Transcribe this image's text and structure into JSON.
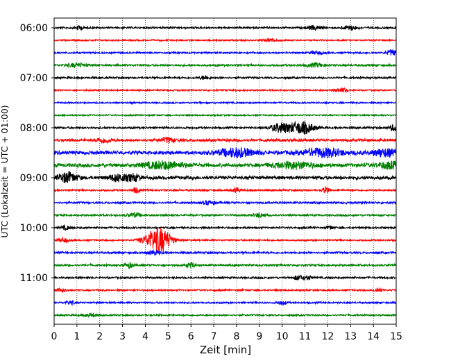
{
  "chart_data": {
    "type": "line",
    "subtype": "helicorder",
    "title": "",
    "xlabel": "Zeit  [min]",
    "ylabel": "UTC (Lokalzeit = UTC + 01:00)",
    "xlim": [
      0,
      15
    ],
    "x_ticks": [
      0,
      1,
      2,
      3,
      4,
      5,
      6,
      7,
      8,
      9,
      10,
      11,
      12,
      13,
      14,
      15
    ],
    "x_tick_labels": [
      "0",
      "1",
      "2",
      "3",
      "4",
      "5",
      "6",
      "7",
      "8",
      "9",
      "10",
      "11",
      "12",
      "13",
      "14",
      "15"
    ],
    "grid": "vertical dotted lines at each minute",
    "y_tick_labels": [
      "06:00",
      "07:00",
      "08:00",
      "09:00",
      "10:00",
      "11:00"
    ],
    "trace_interval_min": 15,
    "start_time": "06:00",
    "trace_colors": [
      "#000000",
      "#ff0000",
      "#0000ff",
      "#008000"
    ],
    "traces": [
      {
        "start": "06:00",
        "color": "#000000",
        "noise": 0.55,
        "events": [
          {
            "t": 1.1,
            "amp": 1.2,
            "dur": 0.2
          },
          {
            "t": 11.4,
            "amp": 1.3,
            "dur": 0.3
          },
          {
            "t": 13.0,
            "amp": 1.4,
            "dur": 0.3
          }
        ]
      },
      {
        "start": "06:15",
        "color": "#ff0000",
        "noise": 0.45,
        "events": [
          {
            "t": 9.5,
            "amp": 1.0,
            "dur": 0.3
          }
        ]
      },
      {
        "start": "06:30",
        "color": "#0000ff",
        "noise": 0.5,
        "events": [
          {
            "t": 14.8,
            "amp": 1.6,
            "dur": 0.25
          },
          {
            "t": 11.5,
            "amp": 1.0,
            "dur": 0.3
          }
        ]
      },
      {
        "start": "06:45",
        "color": "#008000",
        "noise": 0.6,
        "events": [
          {
            "t": 1.0,
            "amp": 1.2,
            "dur": 0.4
          },
          {
            "t": 11.5,
            "amp": 1.2,
            "dur": 0.4
          }
        ]
      },
      {
        "start": "07:00",
        "color": "#000000",
        "noise": 0.55,
        "events": [
          {
            "t": 6.6,
            "amp": 1.3,
            "dur": 0.2
          }
        ]
      },
      {
        "start": "07:15",
        "color": "#ff0000",
        "noise": 0.45,
        "events": [
          {
            "t": 12.6,
            "amp": 1.3,
            "dur": 0.3
          }
        ]
      },
      {
        "start": "07:30",
        "color": "#0000ff",
        "noise": 0.45,
        "events": []
      },
      {
        "start": "07:45",
        "color": "#008000",
        "noise": 0.4,
        "events": []
      },
      {
        "start": "08:00",
        "color": "#000000",
        "noise": 0.6,
        "events": [
          {
            "t": 10.0,
            "amp": 3.0,
            "dur": 0.5
          },
          {
            "t": 10.9,
            "amp": 3.8,
            "dur": 0.5
          },
          {
            "t": 14.9,
            "amp": 2.0,
            "dur": 0.2
          }
        ]
      },
      {
        "start": "08:15",
        "color": "#ff0000",
        "noise": 0.85,
        "events": [
          {
            "t": 2.2,
            "amp": 1.5,
            "dur": 0.3
          },
          {
            "t": 5.0,
            "amp": 1.4,
            "dur": 0.3
          }
        ]
      },
      {
        "start": "08:30",
        "color": "#0000ff",
        "noise": 1.1,
        "events": [
          {
            "t": 8.0,
            "amp": 2.6,
            "dur": 0.8
          },
          {
            "t": 11.8,
            "amp": 2.6,
            "dur": 0.9
          },
          {
            "t": 14.5,
            "amp": 2.2,
            "dur": 0.6
          }
        ]
      },
      {
        "start": "08:45",
        "color": "#008000",
        "noise": 1.1,
        "events": [
          {
            "t": 4.8,
            "amp": 2.2,
            "dur": 0.9
          },
          {
            "t": 10.5,
            "amp": 2.0,
            "dur": 0.9
          },
          {
            "t": 14.7,
            "amp": 2.0,
            "dur": 0.5
          }
        ]
      },
      {
        "start": "09:00",
        "color": "#000000",
        "noise": 1.0,
        "events": [
          {
            "t": 0.6,
            "amp": 3.2,
            "dur": 0.4
          },
          {
            "t": 2.8,
            "amp": 2.2,
            "dur": 0.4
          },
          {
            "t": 3.5,
            "amp": 2.0,
            "dur": 0.3
          }
        ]
      },
      {
        "start": "09:15",
        "color": "#ff0000",
        "noise": 0.55,
        "events": [
          {
            "t": 3.6,
            "amp": 1.8,
            "dur": 0.15
          },
          {
            "t": 8.0,
            "amp": 1.6,
            "dur": 0.15
          },
          {
            "t": 11.9,
            "amp": 2.0,
            "dur": 0.15
          }
        ]
      },
      {
        "start": "09:30",
        "color": "#0000ff",
        "noise": 0.6,
        "events": [
          {
            "t": 6.8,
            "amp": 1.2,
            "dur": 0.3
          }
        ]
      },
      {
        "start": "09:45",
        "color": "#008000",
        "noise": 0.55,
        "events": [
          {
            "t": 3.5,
            "amp": 1.4,
            "dur": 0.3
          },
          {
            "t": 9.0,
            "amp": 1.2,
            "dur": 0.3
          }
        ]
      },
      {
        "start": "10:00",
        "color": "#000000",
        "noise": 0.55,
        "events": [
          {
            "t": 0.5,
            "amp": 1.2,
            "dur": 0.2
          },
          {
            "t": 12.1,
            "amp": 1.3,
            "dur": 0.15
          }
        ]
      },
      {
        "start": "10:15",
        "color": "#ff0000",
        "noise": 0.5,
        "events": [
          {
            "t": 0.4,
            "amp": 1.6,
            "dur": 0.2
          },
          {
            "t": 4.4,
            "amp": 5.5,
            "dur": 0.5
          },
          {
            "t": 4.8,
            "amp": 4.5,
            "dur": 0.4
          }
        ]
      },
      {
        "start": "10:30",
        "color": "#0000ff",
        "noise": 0.6,
        "events": [
          {
            "t": 4.4,
            "amp": 1.3,
            "dur": 0.3
          }
        ]
      },
      {
        "start": "10:45",
        "color": "#008000",
        "noise": 0.6,
        "events": [
          {
            "t": 3.3,
            "amp": 1.6,
            "dur": 0.2
          },
          {
            "t": 6.0,
            "amp": 1.6,
            "dur": 0.2
          }
        ]
      },
      {
        "start": "11:00",
        "color": "#000000",
        "noise": 0.55,
        "events": [
          {
            "t": 10.7,
            "amp": 1.4,
            "dur": 0.2
          },
          {
            "t": 11.1,
            "amp": 1.3,
            "dur": 0.2
          }
        ]
      },
      {
        "start": "11:15",
        "color": "#ff0000",
        "noise": 0.5,
        "events": [
          {
            "t": 0.3,
            "amp": 1.3,
            "dur": 0.2
          },
          {
            "t": 14.2,
            "amp": 1.2,
            "dur": 0.2
          }
        ]
      },
      {
        "start": "11:30",
        "color": "#0000ff",
        "noise": 0.5,
        "events": [
          {
            "t": 0.7,
            "amp": 1.2,
            "dur": 0.2
          },
          {
            "t": 10.0,
            "amp": 1.2,
            "dur": 0.2
          }
        ]
      },
      {
        "start": "11:45",
        "color": "#008000",
        "noise": 0.5,
        "events": [
          {
            "t": 1.6,
            "amp": 1.2,
            "dur": 0.3
          }
        ]
      }
    ]
  }
}
